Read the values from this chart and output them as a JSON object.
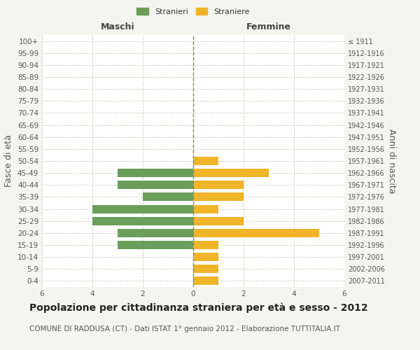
{
  "age_groups": [
    "100+",
    "95-99",
    "90-94",
    "85-89",
    "80-84",
    "75-79",
    "70-74",
    "65-69",
    "60-64",
    "55-59",
    "50-54",
    "45-49",
    "40-44",
    "35-39",
    "30-34",
    "25-29",
    "20-24",
    "15-19",
    "10-14",
    "5-9",
    "0-4"
  ],
  "birth_years": [
    "≤ 1911",
    "1912-1916",
    "1917-1921",
    "1922-1926",
    "1927-1931",
    "1932-1936",
    "1937-1941",
    "1942-1946",
    "1947-1951",
    "1952-1956",
    "1957-1961",
    "1962-1966",
    "1967-1971",
    "1972-1976",
    "1977-1981",
    "1982-1986",
    "1987-1991",
    "1992-1996",
    "1997-2001",
    "2002-2006",
    "2007-2011"
  ],
  "maschi": [
    0,
    0,
    0,
    0,
    0,
    0,
    0,
    0,
    0,
    0,
    0,
    3,
    3,
    2,
    4,
    4,
    3,
    3,
    0,
    0,
    0
  ],
  "femmine": [
    0,
    0,
    0,
    0,
    0,
    0,
    0,
    0,
    0,
    0,
    1,
    3,
    2,
    2,
    1,
    2,
    5,
    1,
    1,
    1,
    1
  ],
  "color_maschi": "#6a9e5a",
  "color_femmine": "#f0b429",
  "title": "Popolazione per cittadinanza straniera per età e sesso - 2012",
  "subtitle": "COMUNE DI RADDUSA (CT) - Dati ISTAT 1° gennaio 2012 - Elaborazione TUTTITALIA.IT",
  "ylabel_left": "Fasce di età",
  "ylabel_right": "Anni di nascita",
  "legend_maschi": "Stranieri",
  "legend_femmine": "Straniere",
  "label_maschi": "Maschi",
  "label_femmine": "Femmine",
  "xlim": 6,
  "bg_color": "#f5f5f0",
  "bar_bg_color": "#ffffff",
  "grid_color": "#d0d0c0",
  "title_fontsize": 10,
  "subtitle_fontsize": 7.5,
  "tick_fontsize": 7.5,
  "label_fontsize": 9
}
